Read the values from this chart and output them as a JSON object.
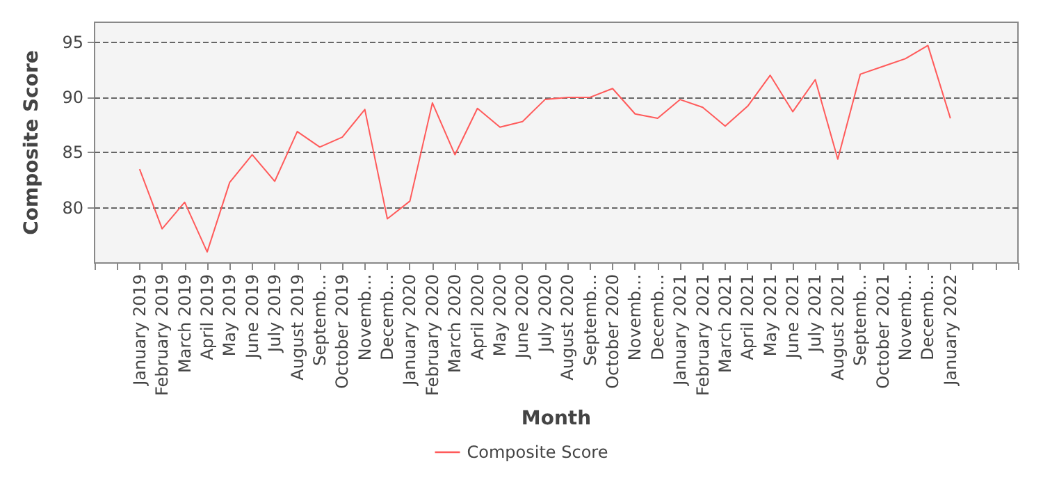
{
  "chart_data": {
    "type": "line",
    "xlabel": "Month",
    "ylabel": "Composite Score",
    "categories": [
      "January 2019",
      "February 2019",
      "March 2019",
      "April 2019",
      "May 2019",
      "June 2019",
      "July 2019",
      "August 2019",
      "Septemb…",
      "October 2019",
      "Novemb…",
      "Decemb…",
      "January 2020",
      "February 2020",
      "March 2020",
      "April 2020",
      "May 2020",
      "June 2020",
      "July 2020",
      "August 2020",
      "Septemb…",
      "October 2020",
      "Novemb…",
      "Decemb…",
      "January 2021",
      "February 2021",
      "March 2021",
      "April 2021",
      "May 2021",
      "June 2021",
      "July 2021",
      "August 2021",
      "Septemb…",
      "October 2021",
      "Novemb…",
      "Decemb…",
      "January 2022"
    ],
    "series": [
      {
        "name": "Composite Score",
        "color": "#ff5a5a",
        "values": [
          83.5,
          78.1,
          80.5,
          76.0,
          82.3,
          84.8,
          82.4,
          86.9,
          85.5,
          86.4,
          88.9,
          79.0,
          80.6,
          89.5,
          84.8,
          89.0,
          87.3,
          87.8,
          89.8,
          90.0,
          90.0,
          90.8,
          88.5,
          88.1,
          89.8,
          89.1,
          87.4,
          89.2,
          92.0,
          88.7,
          91.6,
          84.4,
          92.1,
          92.8,
          93.5,
          94.7,
          88.1
        ]
      }
    ],
    "ylim": [
      75,
      96.8
    ],
    "yticks": [
      80,
      85,
      90,
      95
    ],
    "grid": "y",
    "legend": "bottom",
    "marker": "none",
    "line_style": "solid"
  }
}
